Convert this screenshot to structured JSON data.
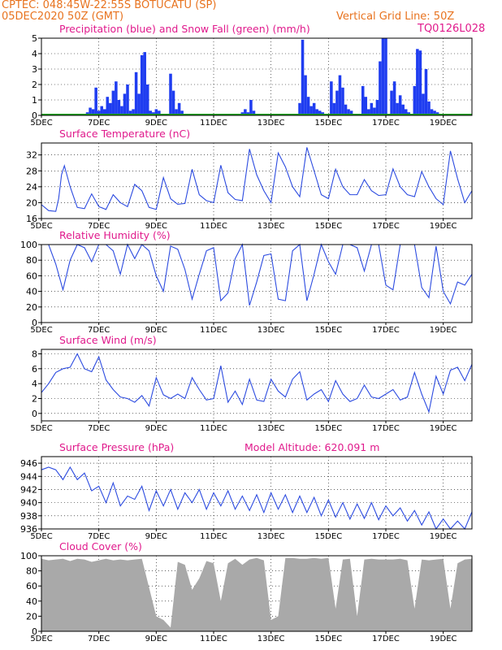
{
  "header": {
    "line1": "CPTEC:   048:45W-22:55S   BOTUCATU (SP)",
    "line2": "05DEC2020 50Z (GMT)",
    "grid_note": "Vertical Grid Line: 50Z",
    "code": "TQ0126L028"
  },
  "colors": {
    "header_text": "#e8731f",
    "panel_title": "#e01a8c",
    "precip_bar": "#1f3df0",
    "snow_line": "#1ea51e",
    "series_line": "#2c4be0",
    "cloud_fill": "#a9a9a9"
  },
  "x_axis": {
    "start_label": "5DEC",
    "tick_labels": [
      "7DEC",
      "9DEC",
      "11DEC",
      "13DEC",
      "15DEC",
      "17DEC",
      "19DEC"
    ],
    "days_range": [
      0,
      15
    ],
    "label_days": [
      0,
      2,
      4,
      6,
      8,
      10,
      12,
      14
    ]
  },
  "chart_data": [
    {
      "type": "bar",
      "title": "Precipitation (blue) and Snow Fall (green) (mm/h)",
      "ylim": [
        0,
        5
      ],
      "yticks": [
        "0",
        "1",
        "2",
        "3",
        "4",
        "5"
      ],
      "series": [
        {
          "name": "Precipitation",
          "color": "#1f3df0",
          "x": [
            1.6,
            1.7,
            1.8,
            1.9,
            2.0,
            2.1,
            2.2,
            2.3,
            2.4,
            2.5,
            2.6,
            2.7,
            2.8,
            2.9,
            3.0,
            3.1,
            3.2,
            3.3,
            3.4,
            3.5,
            3.6,
            3.7,
            3.8,
            3.9,
            4.0,
            4.1,
            4.5,
            4.6,
            4.7,
            4.8,
            4.9,
            6.9,
            7.0,
            7.1,
            7.2,
            7.3,
            7.4,
            9.0,
            9.1,
            9.2,
            9.3,
            9.4,
            9.5,
            9.6,
            9.7,
            9.8,
            10.1,
            10.2,
            10.3,
            10.4,
            10.5,
            10.6,
            10.7,
            10.8,
            11.2,
            11.3,
            11.4,
            11.5,
            11.6,
            11.7,
            11.8,
            11.9,
            12.0,
            12.2,
            12.3,
            12.4,
            12.5,
            12.6,
            12.7,
            12.8,
            13.0,
            13.1,
            13.2,
            13.3,
            13.4,
            13.5,
            13.6,
            13.7,
            13.8
          ],
          "y": [
            0.2,
            0.5,
            0.4,
            1.8,
            0.3,
            0.6,
            0.4,
            1.2,
            0.8,
            1.6,
            2.2,
            1.0,
            0.6,
            1.4,
            2.0,
            0.3,
            0.4,
            2.8,
            1.4,
            3.9,
            4.1,
            2.0,
            0.3,
            0.2,
            0.4,
            0.3,
            2.7,
            1.6,
            0.4,
            0.8,
            0.3,
            0.1,
            0.2,
            0.4,
            0.2,
            1.0,
            0.3,
            0.8,
            4.9,
            2.6,
            1.2,
            0.6,
            0.8,
            0.4,
            0.3,
            0.2,
            2.2,
            0.8,
            1.6,
            2.6,
            1.8,
            0.7,
            0.4,
            0.3,
            1.9,
            1.2,
            0.4,
            0.8,
            0.5,
            1.0,
            3.5,
            5.0,
            5.0,
            1.6,
            2.2,
            0.8,
            1.3,
            0.7,
            0.4,
            0.2,
            1.9,
            4.3,
            4.2,
            1.4,
            3.0,
            0.9,
            0.4,
            0.3,
            0.2
          ]
        },
        {
          "name": "Snow Fall",
          "color": "#1ea51e",
          "x": [
            0,
            15
          ],
          "y": [
            0,
            0
          ]
        }
      ]
    },
    {
      "type": "line",
      "title": "Surface Temperature (nC)",
      "ylim": [
        16,
        35
      ],
      "yticks": [
        "16",
        "20",
        "24",
        "28",
        "32"
      ],
      "x": [
        0.0,
        0.25,
        0.5,
        0.6,
        0.7,
        0.8,
        1.0,
        1.25,
        1.5,
        1.75,
        2.0,
        2.25,
        2.5,
        2.75,
        3.0,
        3.25,
        3.5,
        3.75,
        4.0,
        4.25,
        4.5,
        4.75,
        5.0,
        5.25,
        5.5,
        5.75,
        6.0,
        6.25,
        6.5,
        6.75,
        7.0,
        7.25,
        7.5,
        7.75,
        8.0,
        8.25,
        8.5,
        8.75,
        9.0,
        9.25,
        9.5,
        9.75,
        10.0,
        10.25,
        10.5,
        10.75,
        11.0,
        11.25,
        11.5,
        11.75,
        12.0,
        12.25,
        12.5,
        12.75,
        13.0,
        13.25,
        13.5,
        13.75,
        14.0,
        14.25,
        14.5,
        14.75,
        15.0
      ],
      "y": [
        19.5,
        18.0,
        17.8,
        21.0,
        27.0,
        29.3,
        24.0,
        18.8,
        18.5,
        22.2,
        19.0,
        18.3,
        22.0,
        20.0,
        19.0,
        24.6,
        23.0,
        18.8,
        18.3,
        26.3,
        21.0,
        19.6,
        19.8,
        28.4,
        22.0,
        20.5,
        20.0,
        29.4,
        22.5,
        20.8,
        20.5,
        33.5,
        27.0,
        23.0,
        20.0,
        32.5,
        29.0,
        24.0,
        21.5,
        33.9,
        28.0,
        22.0,
        21.0,
        28.4,
        24.0,
        22.0,
        22.0,
        25.8,
        23.0,
        21.8,
        22.0,
        28.5,
        24.0,
        22.0,
        21.5,
        27.8,
        24.0,
        21.0,
        19.5,
        33.0,
        26.0,
        20.0,
        23.0
      ]
    },
    {
      "type": "line",
      "title": "Relative Humidity (%)",
      "ylim": [
        0,
        100
      ],
      "yticks": [
        "0",
        "20",
        "40",
        "60",
        "80",
        "100"
      ],
      "x": [
        0.0,
        0.25,
        0.5,
        0.75,
        1.0,
        1.25,
        1.5,
        1.75,
        2.0,
        2.25,
        2.5,
        2.75,
        3.0,
        3.25,
        3.5,
        3.75,
        4.0,
        4.25,
        4.5,
        4.75,
        5.0,
        5.25,
        5.5,
        5.75,
        6.0,
        6.25,
        6.5,
        6.75,
        7.0,
        7.25,
        7.5,
        7.75,
        8.0,
        8.25,
        8.5,
        8.75,
        9.0,
        9.25,
        9.5,
        9.75,
        10.0,
        10.25,
        10.5,
        10.75,
        11.0,
        11.25,
        11.5,
        11.75,
        12.0,
        12.25,
        12.5,
        12.75,
        13.0,
        13.25,
        13.5,
        13.75,
        14.0,
        14.25,
        14.5,
        14.75,
        15.0
      ],
      "y": [
        100,
        100,
        75,
        42,
        80,
        100,
        96,
        78,
        100,
        100,
        92,
        62,
        100,
        82,
        100,
        92,
        60,
        40,
        98,
        94,
        68,
        30,
        62,
        92,
        96,
        28,
        38,
        82,
        100,
        22,
        52,
        86,
        88,
        30,
        28,
        92,
        100,
        28,
        62,
        100,
        78,
        62,
        100,
        100,
        96,
        66,
        100,
        100,
        48,
        42,
        100,
        100,
        100,
        45,
        32,
        98,
        40,
        24,
        52,
        48,
        62
      ]
    },
    {
      "type": "line",
      "title": "Surface Wind (m/s)",
      "ylim": [
        -1,
        8.6
      ],
      "yticks": [
        "0",
        "2",
        "4",
        "6",
        "8"
      ],
      "x": [
        0.0,
        0.25,
        0.5,
        0.75,
        1.0,
        1.25,
        1.5,
        1.75,
        2.0,
        2.25,
        2.5,
        2.75,
        3.0,
        3.25,
        3.5,
        3.75,
        4.0,
        4.25,
        4.5,
        4.75,
        5.0,
        5.25,
        5.5,
        5.75,
        6.0,
        6.25,
        6.5,
        6.75,
        7.0,
        7.25,
        7.5,
        7.75,
        8.0,
        8.25,
        8.5,
        8.75,
        9.0,
        9.25,
        9.5,
        9.75,
        10.0,
        10.25,
        10.5,
        10.75,
        11.0,
        11.25,
        11.5,
        11.75,
        12.0,
        12.25,
        12.5,
        12.75,
        13.0,
        13.25,
        13.5,
        13.75,
        14.0,
        14.25,
        14.5,
        14.75,
        15.0
      ],
      "y": [
        2.8,
        4.0,
        5.5,
        6.0,
        6.2,
        8.0,
        6.0,
        5.6,
        7.6,
        4.5,
        3.2,
        2.2,
        2.0,
        1.5,
        2.4,
        1.0,
        4.8,
        2.5,
        2.0,
        2.6,
        2.0,
        4.8,
        3.2,
        1.8,
        2.0,
        6.4,
        1.5,
        3.0,
        1.2,
        4.6,
        1.8,
        1.6,
        4.6,
        3.0,
        2.2,
        4.6,
        5.6,
        1.8,
        2.6,
        3.2,
        1.6,
        4.4,
        2.6,
        1.6,
        2.0,
        3.8,
        2.2,
        2.0,
        2.6,
        3.2,
        1.8,
        2.2,
        5.5,
        2.6,
        0.2,
        5.0,
        2.6,
        5.8,
        6.2,
        4.4,
        6.6
      ]
    },
    {
      "type": "line",
      "title": "Surface Pressure (hPa)",
      "annotation": "Model Altitude: 620.091 m",
      "ylim": [
        936,
        947
      ],
      "yticks": [
        "936",
        "938",
        "940",
        "942",
        "944",
        "946"
      ],
      "x": [
        0.0,
        0.25,
        0.5,
        0.75,
        1.0,
        1.25,
        1.5,
        1.75,
        2.0,
        2.25,
        2.5,
        2.75,
        3.0,
        3.25,
        3.5,
        3.75,
        4.0,
        4.25,
        4.5,
        4.75,
        5.0,
        5.25,
        5.5,
        5.75,
        6.0,
        6.25,
        6.5,
        6.75,
        7.0,
        7.25,
        7.5,
        7.75,
        8.0,
        8.25,
        8.5,
        8.75,
        9.0,
        9.25,
        9.5,
        9.75,
        10.0,
        10.25,
        10.5,
        10.75,
        11.0,
        11.25,
        11.5,
        11.75,
        12.0,
        12.25,
        12.5,
        12.75,
        13.0,
        13.25,
        13.5,
        13.75,
        14.0,
        14.25,
        14.5,
        14.75,
        15.0
      ],
      "y": [
        945.0,
        945.4,
        945.0,
        943.5,
        945.4,
        943.5,
        944.5,
        941.8,
        942.5,
        940.0,
        943.0,
        939.5,
        941.0,
        940.5,
        942.5,
        938.8,
        941.8,
        939.5,
        942.0,
        939.0,
        941.5,
        940.0,
        942.0,
        939.0,
        941.5,
        939.5,
        941.8,
        939.0,
        941.0,
        938.8,
        941.2,
        938.5,
        941.5,
        939.0,
        941.2,
        938.5,
        941.0,
        938.5,
        940.8,
        938.0,
        940.4,
        937.8,
        940.0,
        937.5,
        939.8,
        937.6,
        940.0,
        937.4,
        939.5,
        938.0,
        939.2,
        937.2,
        938.8,
        936.6,
        938.6,
        936.0,
        937.5,
        935.8,
        937.2,
        935.5,
        938.6
      ]
    },
    {
      "type": "area",
      "title": "Cloud Cover (%)",
      "ylim": [
        0,
        100
      ],
      "yticks": [
        "0",
        "20",
        "40",
        "60",
        "80",
        "100"
      ],
      "x": [
        0.0,
        0.25,
        0.5,
        0.75,
        1.0,
        1.25,
        1.5,
        1.75,
        2.0,
        2.25,
        2.5,
        2.75,
        3.0,
        3.25,
        3.5,
        3.75,
        4.0,
        4.25,
        4.5,
        4.75,
        5.0,
        5.25,
        5.5,
        5.75,
        6.0,
        6.25,
        6.5,
        6.75,
        7.0,
        7.25,
        7.5,
        7.75,
        8.0,
        8.25,
        8.5,
        8.75,
        9.0,
        9.25,
        9.5,
        9.75,
        10.0,
        10.25,
        10.5,
        10.75,
        11.0,
        11.25,
        11.5,
        11.75,
        12.0,
        12.25,
        12.5,
        12.75,
        13.0,
        13.25,
        13.5,
        13.75,
        14.0,
        14.25,
        14.5,
        14.75,
        15.0
      ],
      "y": [
        96,
        94,
        95,
        96,
        93,
        96,
        95,
        92,
        94,
        96,
        94,
        95,
        94,
        95,
        96,
        58,
        20,
        15,
        5,
        92,
        88,
        55,
        70,
        93,
        90,
        40,
        90,
        96,
        88,
        95,
        97,
        94,
        15,
        20,
        97,
        97,
        96,
        96,
        97,
        96,
        97,
        30,
        95,
        96,
        20,
        95,
        96,
        95,
        95,
        95,
        96,
        94,
        30,
        95,
        94,
        95,
        96,
        30,
        90,
        95,
        96
      ]
    }
  ]
}
